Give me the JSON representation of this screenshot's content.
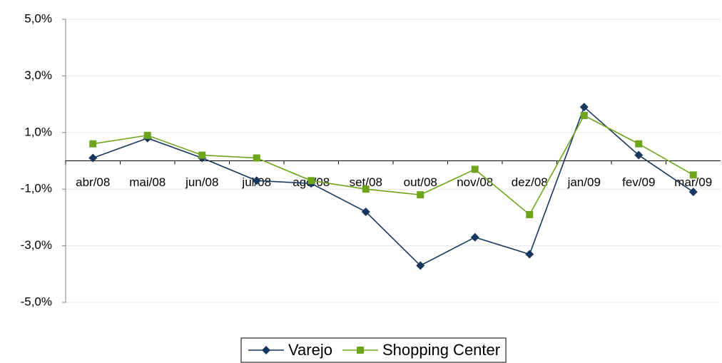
{
  "chart_data": {
    "type": "line",
    "categories": [
      "abr/08",
      "mai/08",
      "jun/08",
      "jul/08",
      "ago/08",
      "set/08",
      "out/08",
      "nov/08",
      "dez/08",
      "jan/09",
      "fev/09",
      "mar/09"
    ],
    "series": [
      {
        "name": "Varejo",
        "color": "#17375e",
        "marker": "diamond",
        "values": [
          0.1,
          0.8,
          0.1,
          -0.7,
          -0.8,
          -1.8,
          -3.7,
          -2.7,
          -3.3,
          1.9,
          0.2,
          -1.1
        ]
      },
      {
        "name": "Shopping Center",
        "color": "#6fa51d",
        "marker": "square",
        "values": [
          0.6,
          0.9,
          0.2,
          0.1,
          -0.7,
          -1.0,
          -1.2,
          -0.3,
          -1.9,
          1.6,
          0.6,
          -0.5
        ]
      }
    ],
    "ylim": [
      -5,
      5
    ],
    "yticks": [
      {
        "value": -5,
        "label": "-5,0%"
      },
      {
        "value": -3,
        "label": "-3,0%"
      },
      {
        "value": -1,
        "label": "-1,0%"
      },
      {
        "value": 1,
        "label": "1,0%"
      },
      {
        "value": 3,
        "label": "3,0%"
      },
      {
        "value": 5,
        "label": "5,0%"
      }
    ],
    "grid": true,
    "legend": "bottom"
  }
}
